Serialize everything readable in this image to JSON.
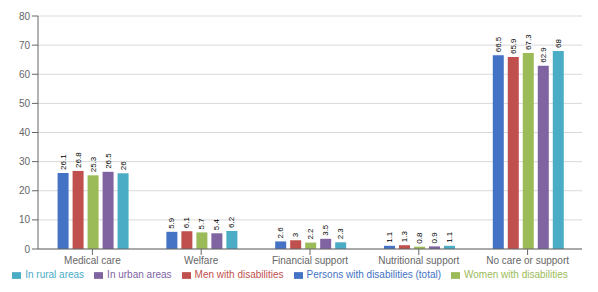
{
  "chart_data": {
    "type": "bar",
    "categories": [
      "Medical care",
      "Welfare",
      "Financial support",
      "Nutritional support",
      "No care or support"
    ],
    "series": [
      {
        "name": "Persons with disabilities (total)",
        "color": "#4472c4",
        "values": [
          26.1,
          5.9,
          2.6,
          1.1,
          66.5
        ]
      },
      {
        "name": "Men with disabilities",
        "color": "#c0504d",
        "values": [
          26.8,
          6.1,
          3.0,
          1.3,
          65.9
        ]
      },
      {
        "name": "Women with disabilities",
        "color": "#9bbb59",
        "values": [
          25.3,
          5.7,
          2.2,
          0.8,
          67.3
        ]
      },
      {
        "name": "In urban areas",
        "color": "#8064a2",
        "values": [
          26.5,
          5.4,
          3.5,
          0.9,
          62.9
        ]
      },
      {
        "name": "In rural areas",
        "color": "#4bacc6",
        "values": [
          26.0,
          6.2,
          2.3,
          1.1,
          68.0
        ]
      }
    ],
    "ylim": [
      0,
      80
    ],
    "yticks": [
      0,
      10,
      20,
      30,
      40,
      50,
      60,
      70,
      80
    ],
    "grid": true,
    "legend": "bottom",
    "data_labels": true
  }
}
